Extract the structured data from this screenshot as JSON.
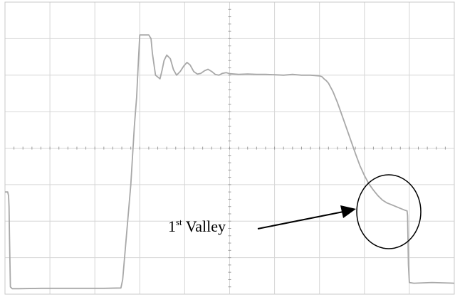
{
  "chart_data": {
    "type": "line",
    "title": "",
    "xlabel": "",
    "ylabel": "",
    "grid": true,
    "xlim": [
      0,
      10
    ],
    "ylim": [
      -4,
      4
    ],
    "series": [
      {
        "color": "#a8a8a8",
        "x": [
          0,
          0.06,
          0.08,
          0.09,
          0.1,
          0.12,
          0.16,
          0.3,
          0.8,
          1.5,
          2.2,
          2.58,
          2.62,
          2.8,
          2.88,
          2.93,
          2.97,
          3.0,
          3.03,
          3.2,
          3.25,
          3.28,
          3.35,
          3.45,
          3.5,
          3.54,
          3.6,
          3.68,
          3.75,
          3.82,
          3.9,
          3.98,
          4.05,
          4.12,
          4.2,
          4.28,
          4.36,
          4.44,
          4.52,
          4.6,
          4.68,
          4.76,
          4.84,
          4.92,
          5.0,
          5.2,
          5.4,
          5.6,
          5.8,
          6.0,
          6.2,
          6.4,
          6.6,
          6.8,
          7.0,
          7.05,
          7.1,
          7.15,
          7.2,
          7.3,
          7.4,
          7.5,
          7.6,
          7.7,
          7.8,
          7.9,
          8.0,
          8.1,
          8.2,
          8.3,
          8.4,
          8.5,
          8.6,
          8.7,
          8.8,
          8.9,
          8.95,
          8.96,
          8.98,
          9.0,
          9.1,
          9.5,
          10.0
        ],
        "y": [
          -1.2,
          -1.2,
          -1.3,
          -1.6,
          -2.4,
          -3.8,
          -3.85,
          -3.85,
          -3.84,
          -3.84,
          -3.84,
          -3.83,
          -3.6,
          -1.0,
          0.6,
          1.4,
          2.4,
          3.1,
          3.1,
          3.1,
          3.0,
          2.6,
          2.0,
          1.9,
          2.15,
          2.4,
          2.55,
          2.45,
          2.15,
          2.0,
          2.1,
          2.25,
          2.35,
          2.28,
          2.1,
          2.03,
          2.05,
          2.12,
          2.16,
          2.1,
          2.02,
          2.0,
          2.05,
          2.07,
          2.04,
          2.02,
          2.03,
          2.02,
          2.02,
          2.01,
          2.0,
          2.02,
          2.0,
          2.0,
          1.98,
          1.96,
          1.9,
          1.85,
          1.78,
          1.55,
          1.25,
          0.9,
          0.55,
          0.2,
          -0.15,
          -0.48,
          -0.75,
          -0.98,
          -1.15,
          -1.3,
          -1.42,
          -1.5,
          -1.55,
          -1.6,
          -1.65,
          -1.7,
          -1.72,
          -1.85,
          -3.2,
          -3.68,
          -3.7,
          -3.68,
          -3.7
        ]
      }
    ],
    "annotations": [
      {
        "text_base": "1",
        "text_sup": "st",
        "text_rest": " Valley",
        "x": 3.6,
        "y": -2.05
      }
    ]
  }
}
